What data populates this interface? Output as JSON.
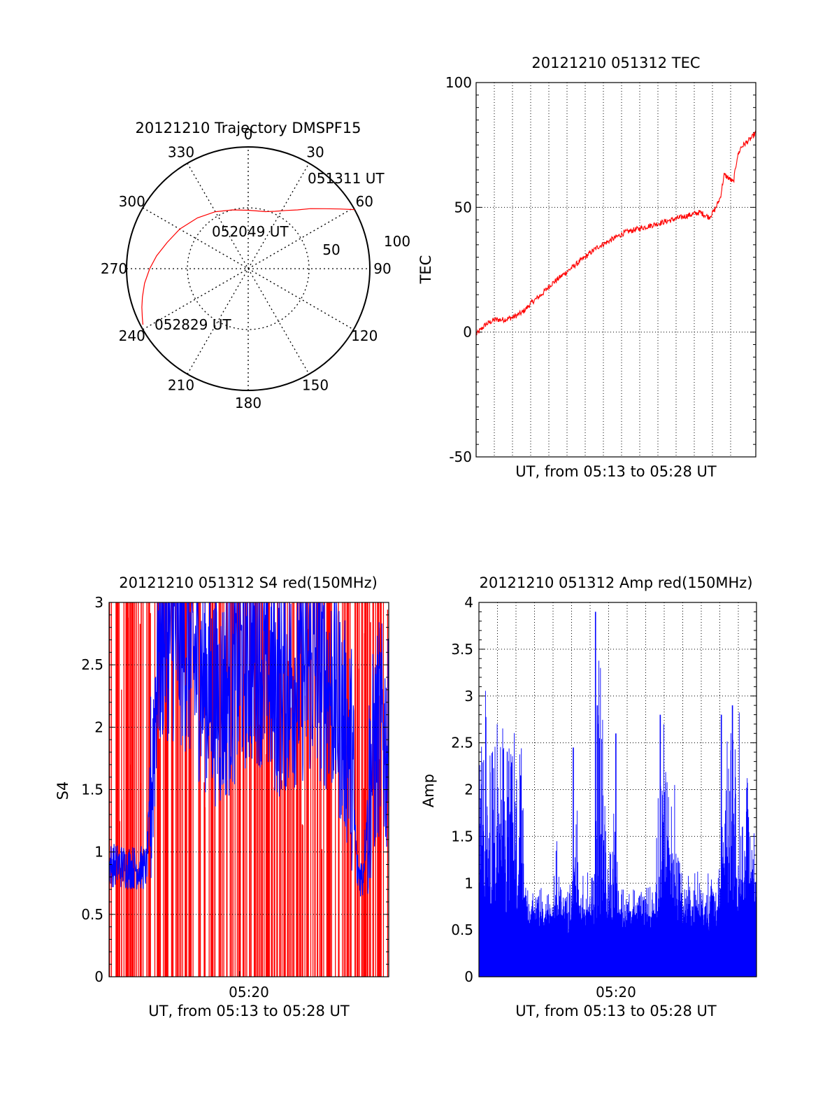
{
  "chart_data": [
    {
      "id": "trajectory",
      "type": "scatter",
      "title": "20121210 Trajectory DMSPF15",
      "azimuth_labels": [
        "0",
        "30",
        "60",
        "90",
        "120",
        "150",
        "180",
        "210",
        "240",
        "270",
        "300",
        "330"
      ],
      "radial_labels": [
        "50",
        "100"
      ],
      "annotations": [
        "051311 UT",
        "052049 UT",
        "052829 UT"
      ],
      "series": [
        {
          "color": "#ff0000",
          "azimuth_deg": [
            61,
            57,
            52,
            46,
            40,
            33,
            25,
            17,
            9,
            0,
            345,
            330,
            315,
            300,
            288,
            278,
            270,
            262,
            255,
            250,
            245,
            242
          ],
          "radius": [
            100,
            90,
            80,
            71,
            63,
            57,
            52,
            49,
            48,
            48,
            50,
            54,
            59,
            65,
            70,
            76,
            81,
            86,
            90,
            93,
            96,
            98
          ]
        }
      ],
      "ylim": [
        0,
        100
      ]
    },
    {
      "id": "tec",
      "type": "line",
      "title": "20121210 051312 TEC",
      "xlabel": "UT, from 05:13 to 05:28 UT",
      "ylabel": "TEC",
      "ylim": [
        -50,
        100
      ],
      "xlim": [
        0,
        15
      ],
      "yticks": [
        "100",
        "50",
        "0",
        "-50"
      ],
      "grid": true,
      "series": [
        {
          "color": "#ff0000",
          "x": [
            0,
            0.5,
            1,
            1.5,
            2,
            2.5,
            3,
            3.5,
            4,
            4.5,
            5,
            5.5,
            6,
            6.5,
            7,
            7.5,
            8,
            8.5,
            9,
            9.5,
            10,
            10.5,
            11,
            11.5,
            12,
            12.5,
            12.8,
            13.1,
            13.3,
            13.5,
            13.8,
            14,
            14.2,
            14.5,
            14.8,
            15
          ],
          "y": [
            -1,
            3,
            5,
            5,
            6,
            8,
            12,
            15,
            19,
            22,
            25,
            28,
            31,
            34,
            36,
            38,
            40,
            41,
            42,
            43,
            44,
            45,
            46,
            47,
            48,
            46,
            49,
            54,
            63,
            62,
            60,
            70,
            74,
            76,
            78,
            80
          ]
        }
      ]
    },
    {
      "id": "s4",
      "type": "line",
      "title": "20121210 051312 S4 red(150MHz)",
      "xlabel": "UT, from 05:13 to 05:28 UT",
      "ylabel": "S4",
      "xtick": "05:20",
      "ylim": [
        0,
        3
      ],
      "xlim": [
        0,
        15
      ],
      "yticks": [
        "3",
        "2.5",
        "2",
        "1.5",
        "1",
        "0.5",
        "0"
      ],
      "grid": true,
      "series": [
        {
          "color": "#ff0000"
        },
        {
          "color": "#0000ff",
          "x": [
            0,
            1,
            2,
            2.3,
            2.6,
            3,
            4,
            5,
            6,
            7,
            8,
            9,
            10,
            11,
            12,
            13,
            13.3,
            13.6,
            14,
            14.5,
            15
          ],
          "center": [
            0.9,
            0.88,
            0.87,
            1.6,
            2.6,
            2.8,
            2.7,
            2.4,
            2.2,
            2.5,
            2.6,
            2.3,
            2.4,
            2.5,
            2.3,
            1.8,
            0.85,
            0.8,
            1.6,
            2.0,
            1.8
          ]
        }
      ]
    },
    {
      "id": "amp",
      "type": "bar",
      "title": "20121210 051312 Amp red(150MHz)",
      "xlabel": "UT, from 05:13 to 05:28 UT",
      "ylabel": "Amp",
      "xtick": "05:20",
      "ylim": [
        0,
        4
      ],
      "xlim": [
        0,
        15
      ],
      "yticks": [
        "4",
        "3.5",
        "3",
        "2.5",
        "2",
        "1.5",
        "1",
        "0.5",
        "0"
      ],
      "grid": true,
      "series": [
        {
          "color": "#0000ff",
          "x": [
            0,
            0.5,
            1,
            1.5,
            2,
            2.3,
            2.5,
            3,
            4,
            4.2,
            4.5,
            5,
            5.2,
            5.4,
            6,
            6.2,
            6.5,
            7,
            7.3,
            7.5,
            8,
            9,
            9.5,
            10,
            11,
            12,
            12.5,
            13,
            13.5,
            14,
            14.5,
            15
          ],
          "envelope": [
            1.8,
            2.3,
            2.0,
            2.0,
            1.9,
            1.7,
            0.8,
            0.7,
            0.7,
            1.1,
            0.7,
            0.7,
            2.0,
            0.7,
            0.8,
            1.2,
            2.8,
            0.8,
            1.8,
            0.7,
            0.7,
            0.8,
            0.7,
            2.3,
            0.8,
            0.8,
            0.9,
            0.8,
            2.2,
            2.0,
            1.6,
            1.2
          ],
          "peaks": [
            [
              6.3,
              3.9
            ],
            [
              6.4,
              2.9
            ],
            [
              7.4,
              2.6
            ],
            [
              9.8,
              2.8
            ],
            [
              5.1,
              2.45
            ],
            [
              13.1,
              2.8
            ],
            [
              13.7,
              2.9
            ]
          ]
        }
      ]
    }
  ]
}
